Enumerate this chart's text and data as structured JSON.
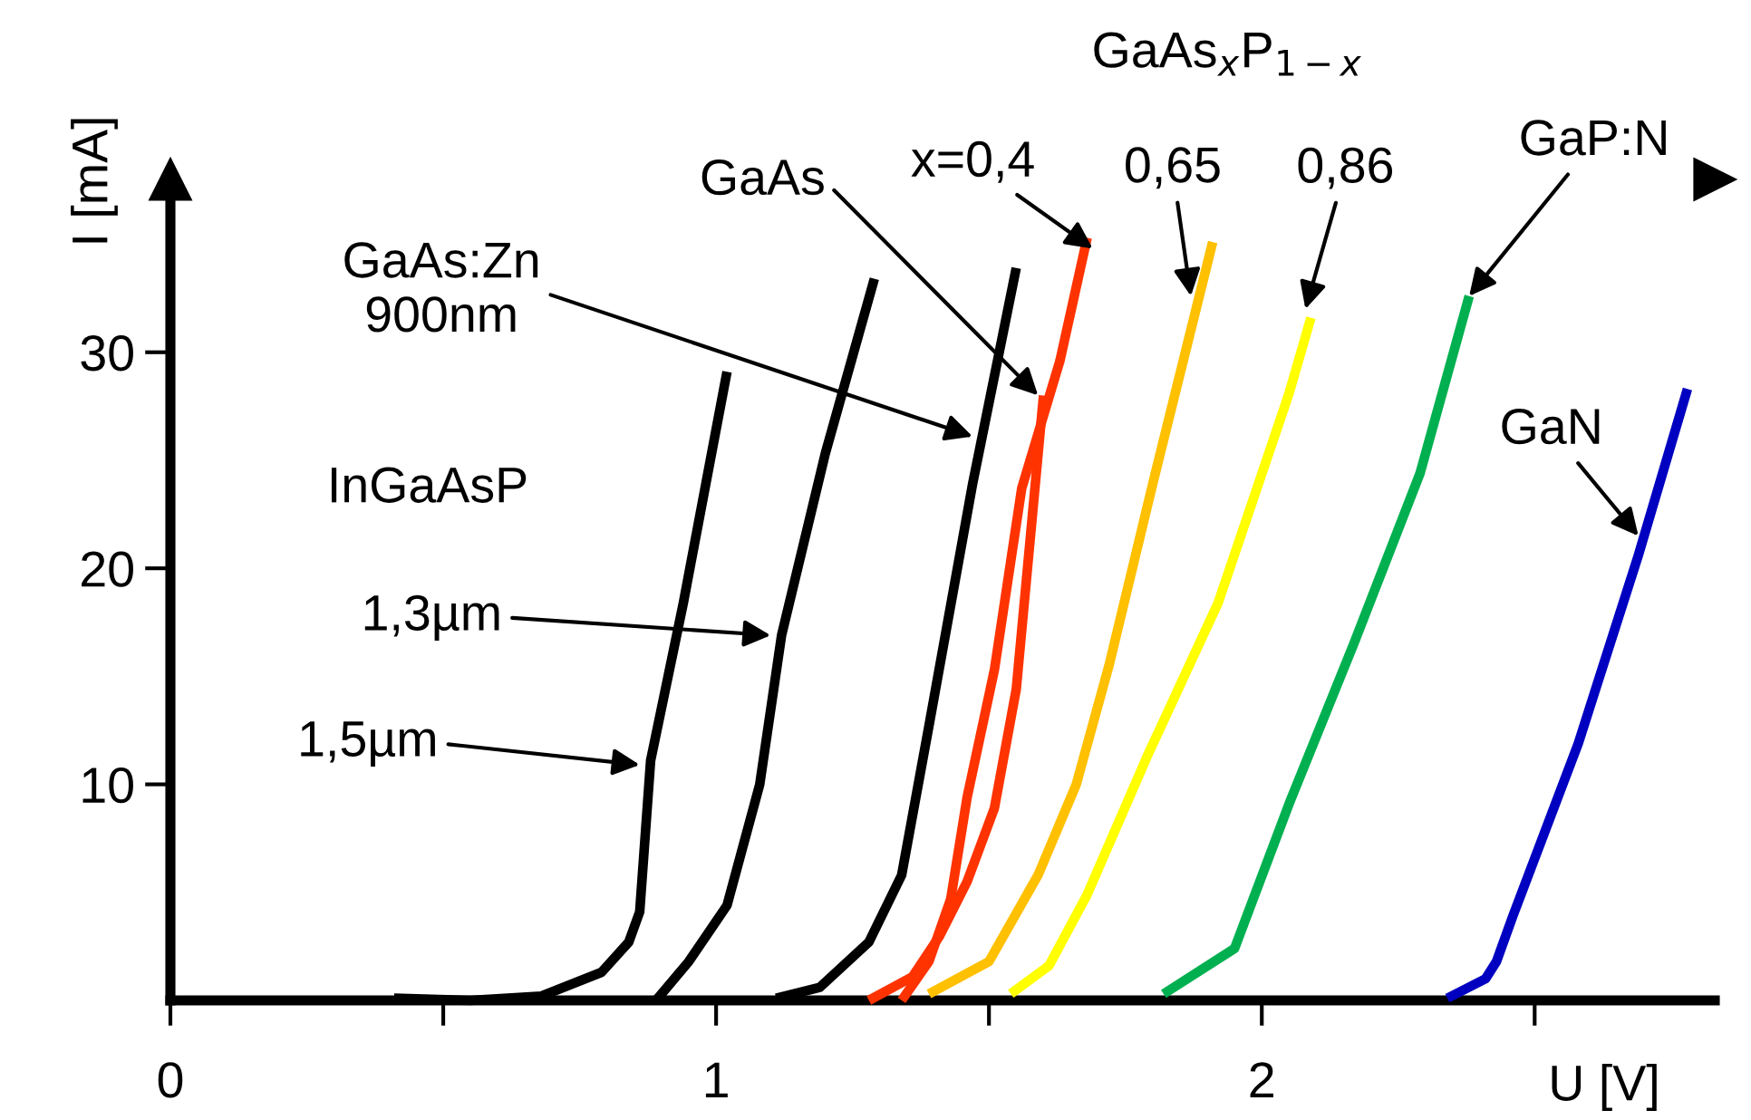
{
  "chart_data": {
    "type": "line",
    "xlabel": "U [V]",
    "ylabel": "I [mA]",
    "xlim": [
      0,
      2.83
    ],
    "ylim": [
      0,
      38
    ],
    "xticks": [
      0,
      {
        "value": 0.5,
        "label": null
      },
      1,
      {
        "value": 1.5,
        "label": null
      },
      2,
      {
        "value": 2.5,
        "label": null
      }
    ],
    "yticks": [
      10,
      20,
      30
    ],
    "grid": false,
    "legend": false,
    "marker": "none",
    "line_style": "solid",
    "series": [
      {
        "color": "#000000",
        "x": [
          0.41,
          0.55,
          0.68,
          0.79,
          0.84,
          0.86,
          0.88,
          0.94,
          1.02
        ],
        "values": [
          0.1,
          0,
          0.2,
          1.3,
          2.7,
          4.1,
          11.1,
          18.4,
          29.1
        ]
      },
      {
        "color": "#000000",
        "x": [
          0.89,
          0.95,
          1.02,
          1.08,
          1.12,
          1.2,
          1.29
        ],
        "values": [
          0,
          1.8,
          4.4,
          10.0,
          16.9,
          25.3,
          33.4
        ]
      },
      {
        "color": "#000000",
        "x": [
          1.11,
          1.19,
          1.28,
          1.34,
          1.39,
          1.47,
          1.55
        ],
        "values": [
          0.1,
          0.6,
          2.7,
          5.8,
          12.7,
          23.9,
          33.9
        ]
      },
      {
        "color": "#ff3300",
        "x": [
          1.28,
          1.36,
          1.41,
          1.46,
          1.51,
          1.55,
          1.6
        ],
        "values": [
          0,
          1.1,
          3.0,
          5.5,
          8.9,
          14.4,
          28.0
        ]
      },
      {
        "color": "#ff3300",
        "x": [
          1.34,
          1.39,
          1.43,
          1.46,
          1.51,
          1.56,
          1.63,
          1.68
        ],
        "values": [
          0,
          1.8,
          4.7,
          9.4,
          15.3,
          23.7,
          29.6,
          35.3
        ]
      },
      {
        "color": "#ffc000",
        "x": [
          1.39,
          1.5,
          1.59,
          1.66,
          1.72,
          1.8,
          1.91
        ],
        "values": [
          0.3,
          1.8,
          5.8,
          10.0,
          15.5,
          23.9,
          35.1
        ]
      },
      {
        "color": "#ffff00",
        "x": [
          1.54,
          1.61,
          1.68,
          1.79,
          1.92,
          2.05,
          2.09
        ],
        "values": [
          0.3,
          1.6,
          4.9,
          11.3,
          18.4,
          28.1,
          31.6
        ]
      },
      {
        "color": "#00b050",
        "x": [
          1.82,
          1.95,
          2.05,
          2.17,
          2.29,
          2.38
        ],
        "values": [
          0.3,
          2.4,
          9.1,
          16.6,
          24.4,
          32.6
        ]
      },
      {
        "color": "#0000c0",
        "x": [
          2.34,
          2.41,
          2.43,
          2.46,
          2.58,
          2.69,
          2.78
        ],
        "values": [
          0.1,
          1.0,
          1.8,
          3.9,
          11.9,
          20.6,
          28.3
        ]
      }
    ],
    "annotations": [
      {
        "text": "GaAs:Zn\n900nm",
        "x": 1.47,
        "y": 26.1
      },
      "InGaAsP",
      {
        "text": "1,3µm",
        "x": 1.1,
        "y": 16.9
      },
      {
        "text": "1,5µm",
        "x": 0.86,
        "y": 10.9
      },
      {
        "text": "GaAs",
        "x": 1.59,
        "y": 28.0
      },
      "GaAs$_{x}$P$_{1−x}$",
      {
        "text": "x=0,4",
        "x": 1.69,
        "y": 34.8
      },
      {
        "text": "0,65",
        "x": 1.87,
        "y": 32.6
      },
      {
        "text": "0,86",
        "x": 2.08,
        "y": 32.0
      },
      {
        "text": "GaP:N",
        "x": 2.38,
        "y": 32.6
      },
      {
        "text": "GaN",
        "x": 2.69,
        "y": 21.5
      }
    ]
  }
}
